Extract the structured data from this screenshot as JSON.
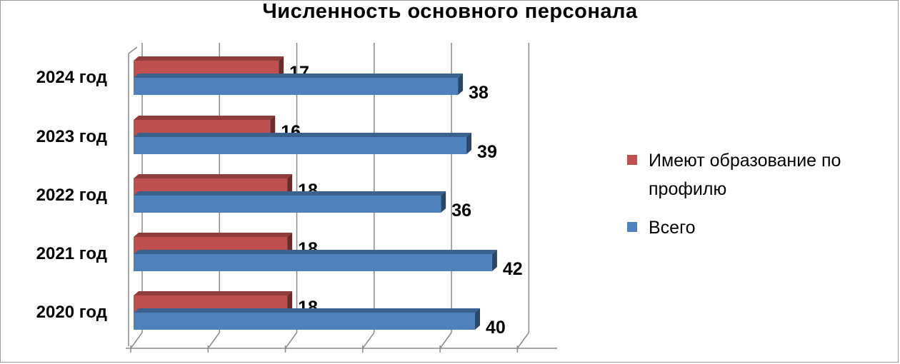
{
  "chart_data": {
    "type": "bar",
    "orientation": "horizontal",
    "style": "3d-clustered",
    "title": "Численность основного персонала",
    "categories": [
      "2024 год",
      "2023 год",
      "2022 год",
      "2021 год",
      "2020 год"
    ],
    "series": [
      {
        "name": " Имеют образование по профилю",
        "color": "#c0504d",
        "values": [
          17,
          16,
          18,
          18,
          18
        ]
      },
      {
        "name": "Всего",
        "color": "#4f81bd",
        "values": [
          38,
          39,
          36,
          42,
          40
        ]
      }
    ],
    "xlim": [
      0,
      50
    ],
    "grid": true,
    "legend_position": "right",
    "data_labels": true
  }
}
